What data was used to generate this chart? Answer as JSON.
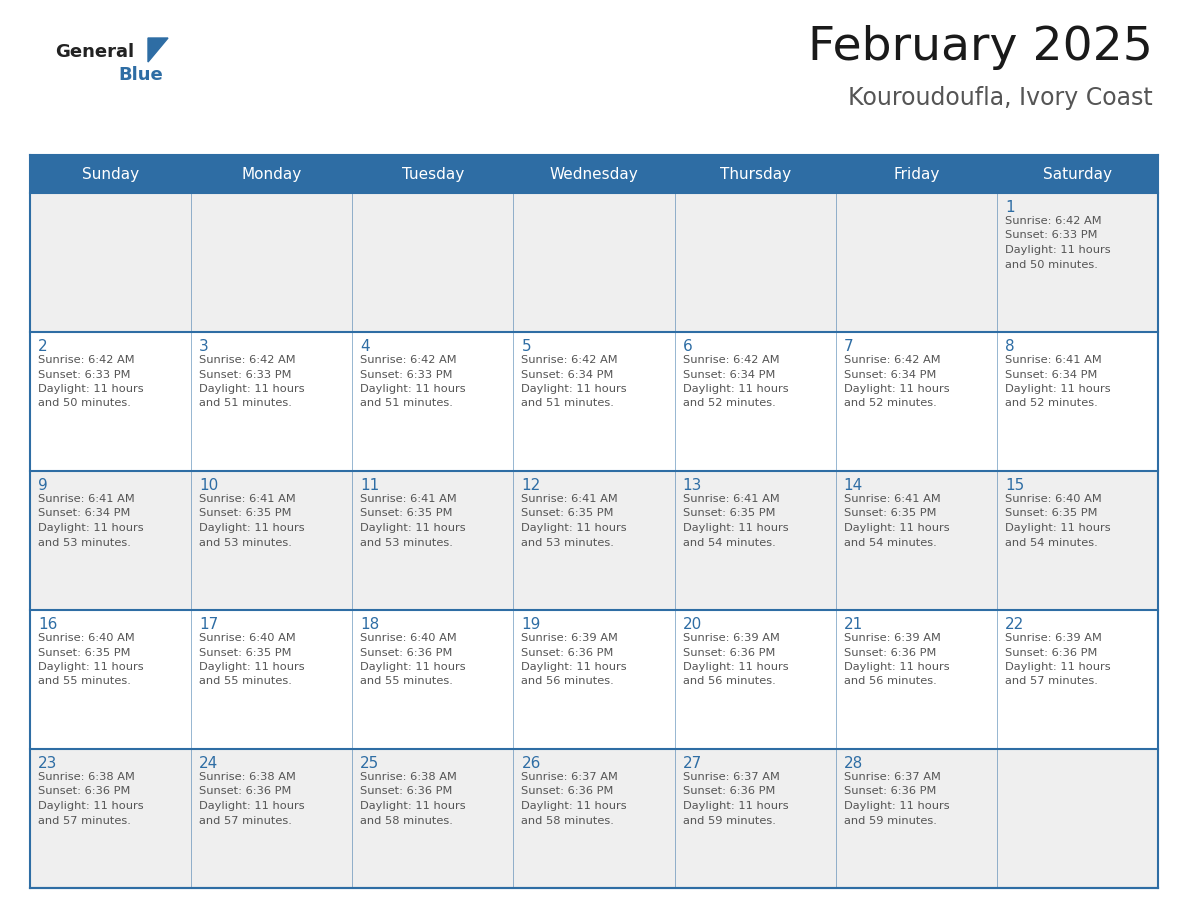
{
  "title": "February 2025",
  "subtitle": "Kouroudoufla, Ivory Coast",
  "days_of_week": [
    "Sunday",
    "Monday",
    "Tuesday",
    "Wednesday",
    "Thursday",
    "Friday",
    "Saturday"
  ],
  "header_bg": "#2E6DA4",
  "header_text": "#FFFFFF",
  "cell_bg_odd": "#EFEFEF",
  "cell_bg_even": "#FFFFFF",
  "day_number_color": "#2E6DA4",
  "info_text_color": "#555555",
  "border_color": "#2E6DA4",
  "calendar_data": [
    [
      null,
      null,
      null,
      null,
      null,
      null,
      {
        "day": "1",
        "sunrise": "6:42 AM",
        "sunset": "6:33 PM",
        "daylight_l1": "Daylight: 11 hours",
        "daylight_l2": "and 50 minutes."
      }
    ],
    [
      {
        "day": "2",
        "sunrise": "6:42 AM",
        "sunset": "6:33 PM",
        "daylight_l1": "Daylight: 11 hours",
        "daylight_l2": "and 50 minutes."
      },
      {
        "day": "3",
        "sunrise": "6:42 AM",
        "sunset": "6:33 PM",
        "daylight_l1": "Daylight: 11 hours",
        "daylight_l2": "and 51 minutes."
      },
      {
        "day": "4",
        "sunrise": "6:42 AM",
        "sunset": "6:33 PM",
        "daylight_l1": "Daylight: 11 hours",
        "daylight_l2": "and 51 minutes."
      },
      {
        "day": "5",
        "sunrise": "6:42 AM",
        "sunset": "6:34 PM",
        "daylight_l1": "Daylight: 11 hours",
        "daylight_l2": "and 51 minutes."
      },
      {
        "day": "6",
        "sunrise": "6:42 AM",
        "sunset": "6:34 PM",
        "daylight_l1": "Daylight: 11 hours",
        "daylight_l2": "and 52 minutes."
      },
      {
        "day": "7",
        "sunrise": "6:42 AM",
        "sunset": "6:34 PM",
        "daylight_l1": "Daylight: 11 hours",
        "daylight_l2": "and 52 minutes."
      },
      {
        "day": "8",
        "sunrise": "6:41 AM",
        "sunset": "6:34 PM",
        "daylight_l1": "Daylight: 11 hours",
        "daylight_l2": "and 52 minutes."
      }
    ],
    [
      {
        "day": "9",
        "sunrise": "6:41 AM",
        "sunset": "6:34 PM",
        "daylight_l1": "Daylight: 11 hours",
        "daylight_l2": "and 53 minutes."
      },
      {
        "day": "10",
        "sunrise": "6:41 AM",
        "sunset": "6:35 PM",
        "daylight_l1": "Daylight: 11 hours",
        "daylight_l2": "and 53 minutes."
      },
      {
        "day": "11",
        "sunrise": "6:41 AM",
        "sunset": "6:35 PM",
        "daylight_l1": "Daylight: 11 hours",
        "daylight_l2": "and 53 minutes."
      },
      {
        "day": "12",
        "sunrise": "6:41 AM",
        "sunset": "6:35 PM",
        "daylight_l1": "Daylight: 11 hours",
        "daylight_l2": "and 53 minutes."
      },
      {
        "day": "13",
        "sunrise": "6:41 AM",
        "sunset": "6:35 PM",
        "daylight_l1": "Daylight: 11 hours",
        "daylight_l2": "and 54 minutes."
      },
      {
        "day": "14",
        "sunrise": "6:41 AM",
        "sunset": "6:35 PM",
        "daylight_l1": "Daylight: 11 hours",
        "daylight_l2": "and 54 minutes."
      },
      {
        "day": "15",
        "sunrise": "6:40 AM",
        "sunset": "6:35 PM",
        "daylight_l1": "Daylight: 11 hours",
        "daylight_l2": "and 54 minutes."
      }
    ],
    [
      {
        "day": "16",
        "sunrise": "6:40 AM",
        "sunset": "6:35 PM",
        "daylight_l1": "Daylight: 11 hours",
        "daylight_l2": "and 55 minutes."
      },
      {
        "day": "17",
        "sunrise": "6:40 AM",
        "sunset": "6:35 PM",
        "daylight_l1": "Daylight: 11 hours",
        "daylight_l2": "and 55 minutes."
      },
      {
        "day": "18",
        "sunrise": "6:40 AM",
        "sunset": "6:36 PM",
        "daylight_l1": "Daylight: 11 hours",
        "daylight_l2": "and 55 minutes."
      },
      {
        "day": "19",
        "sunrise": "6:39 AM",
        "sunset": "6:36 PM",
        "daylight_l1": "Daylight: 11 hours",
        "daylight_l2": "and 56 minutes."
      },
      {
        "day": "20",
        "sunrise": "6:39 AM",
        "sunset": "6:36 PM",
        "daylight_l1": "Daylight: 11 hours",
        "daylight_l2": "and 56 minutes."
      },
      {
        "day": "21",
        "sunrise": "6:39 AM",
        "sunset": "6:36 PM",
        "daylight_l1": "Daylight: 11 hours",
        "daylight_l2": "and 56 minutes."
      },
      {
        "day": "22",
        "sunrise": "6:39 AM",
        "sunset": "6:36 PM",
        "daylight_l1": "Daylight: 11 hours",
        "daylight_l2": "and 57 minutes."
      }
    ],
    [
      {
        "day": "23",
        "sunrise": "6:38 AM",
        "sunset": "6:36 PM",
        "daylight_l1": "Daylight: 11 hours",
        "daylight_l2": "and 57 minutes."
      },
      {
        "day": "24",
        "sunrise": "6:38 AM",
        "sunset": "6:36 PM",
        "daylight_l1": "Daylight: 11 hours",
        "daylight_l2": "and 57 minutes."
      },
      {
        "day": "25",
        "sunrise": "6:38 AM",
        "sunset": "6:36 PM",
        "daylight_l1": "Daylight: 11 hours",
        "daylight_l2": "and 58 minutes."
      },
      {
        "day": "26",
        "sunrise": "6:37 AM",
        "sunset": "6:36 PM",
        "daylight_l1": "Daylight: 11 hours",
        "daylight_l2": "and 58 minutes."
      },
      {
        "day": "27",
        "sunrise": "6:37 AM",
        "sunset": "6:36 PM",
        "daylight_l1": "Daylight: 11 hours",
        "daylight_l2": "and 59 minutes."
      },
      {
        "day": "28",
        "sunrise": "6:37 AM",
        "sunset": "6:36 PM",
        "daylight_l1": "Daylight: 11 hours",
        "daylight_l2": "and 59 minutes."
      },
      null
    ]
  ],
  "row_bg": [
    "#EFEFEF",
    "#FFFFFF",
    "#EFEFEF",
    "#FFFFFF",
    "#EFEFEF"
  ]
}
